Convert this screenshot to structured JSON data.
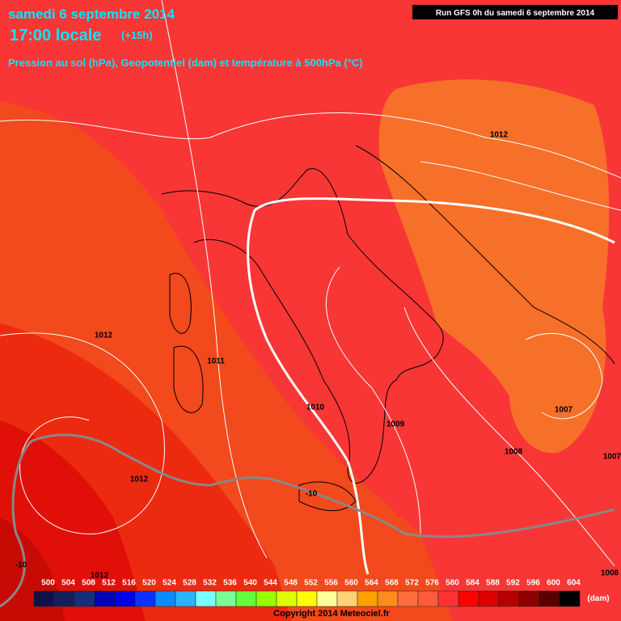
{
  "header": {
    "date": "samedi 6 septembre 2014",
    "time": "17:00 locale",
    "lead": "(+15h)",
    "subtitle": "Pression au sol (hPa), Geopotentiel (dam) et température à 500hPa (°C)",
    "run": "Run GFS 0h du samedi 6 septembre 2014"
  },
  "isobar_labels": [
    "1012",
    "1012",
    "1011",
    "1010",
    "1009",
    "1008",
    "1007",
    "1007",
    "1012",
    "1012",
    "1008"
  ],
  "isotherm_labels": [
    "-10",
    "-10"
  ],
  "legend": {
    "levels": [
      500,
      504,
      508,
      512,
      516,
      520,
      524,
      528,
      532,
      536,
      540,
      544,
      548,
      552,
      556,
      560,
      564,
      568,
      572,
      576,
      580,
      584,
      588,
      592,
      596,
      600,
      604
    ],
    "colors": [
      "#10104c",
      "#14205c",
      "#162e7c",
      "#0000b4",
      "#0000e6",
      "#0a32ff",
      "#0a8cff",
      "#28b4ff",
      "#78ffff",
      "#78ff96",
      "#64ff3c",
      "#96ff00",
      "#dcff00",
      "#ffff00",
      "#ffff9b",
      "#ffd278",
      "#ffa000",
      "#ff8c1e",
      "#ff6e3c",
      "#ff5a3c",
      "#ff3232",
      "#ff0000",
      "#dc0000",
      "#b40000",
      "#8c0000",
      "#5a0000",
      "#000000"
    ],
    "unit": "(dam)"
  },
  "footer": {
    "copyright": "Copyright 2014 Meteociel.fr"
  }
}
